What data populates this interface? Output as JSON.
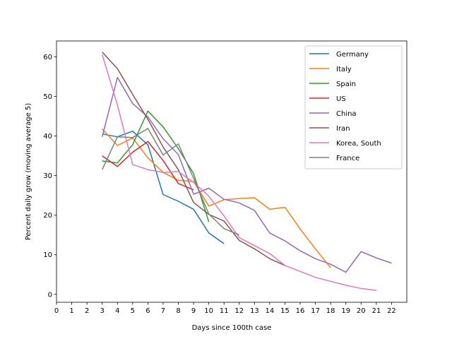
{
  "chart_data": {
    "type": "line",
    "title": "",
    "xlabel": "Days since 100th case",
    "ylabel": "Percent daily grow (moving average 5)",
    "xlim": [
      0,
      23
    ],
    "ylim": [
      -2,
      64
    ],
    "xticks": [
      0,
      1,
      2,
      3,
      4,
      5,
      6,
      7,
      8,
      9,
      10,
      11,
      12,
      13,
      14,
      15,
      16,
      17,
      18,
      19,
      20,
      21,
      22
    ],
    "yticks": [
      0,
      10,
      20,
      30,
      40,
      50,
      60
    ],
    "grid": false,
    "legend_position": "top-right",
    "series": [
      {
        "name": "Germany",
        "color": "#1f77b4",
        "x": [
          3,
          4,
          5,
          6,
          7,
          8,
          9,
          10,
          11
        ],
        "y": [
          40.5,
          39.8,
          41.2,
          37.8,
          25.2,
          23.5,
          21.5,
          15.5,
          12.8
        ]
      },
      {
        "name": "Italy",
        "color": "#ff7f0e",
        "x": [
          3,
          4,
          5,
          6,
          7,
          8,
          9,
          10,
          11,
          12,
          13,
          14,
          15,
          16,
          17,
          18
        ],
        "y": [
          41.8,
          37.6,
          39.5,
          34.5,
          30.8,
          28.8,
          28.5,
          22.3,
          23.9,
          24.2,
          24.4,
          21.5,
          22.0,
          16.5,
          11.5,
          6.7
        ]
      },
      {
        "name": "Spain",
        "color": "#2ca02c",
        "x": [
          3,
          4,
          5,
          6,
          7,
          8,
          9,
          10
        ],
        "y": [
          33.7,
          33.2,
          37.8,
          46.3,
          42.3,
          36.8,
          30.5,
          18.3
        ]
      },
      {
        "name": "US",
        "color": "#d62728",
        "x": [
          3,
          4,
          5,
          6,
          7,
          8,
          9
        ],
        "y": [
          35.0,
          32.3,
          35.9,
          38.6,
          33.8,
          28.0,
          26.4
        ]
      },
      {
        "name": "China",
        "color": "#9467bd",
        "x": [
          3,
          4,
          5,
          6,
          7,
          8,
          9,
          10,
          11,
          12,
          13,
          14,
          15,
          16,
          17,
          18,
          19,
          20,
          21,
          22
        ],
        "y": [
          39.8,
          54.8,
          48.2,
          44.8,
          39.3,
          35.3,
          25.3,
          26.8,
          24.0,
          23.1,
          21.2,
          15.5,
          13.5,
          11.0,
          9.0,
          7.6,
          5.6,
          10.8,
          9.2,
          7.9
        ]
      },
      {
        "name": "Iran",
        "color": "#8c564b",
        "x": [
          3,
          4,
          5,
          6,
          7,
          8,
          9,
          10,
          11,
          12,
          13,
          14,
          15
        ],
        "y": [
          61.2,
          57.0,
          50.5,
          44.2,
          37.2,
          31.5,
          23.2,
          20.2,
          18.5,
          13.6,
          11.5,
          9.0,
          7.3
        ]
      },
      {
        "name": "Korea, South",
        "color": "#e377c2",
        "x": [
          3,
          4,
          5,
          6,
          7,
          8,
          9,
          10,
          11,
          12,
          13,
          14,
          15,
          16,
          17,
          18,
          19,
          20,
          21
        ],
        "y": [
          60.6,
          47.8,
          32.8,
          31.5,
          30.8,
          31.0,
          28.3,
          24.8,
          19.8,
          14.3,
          12.3,
          10.3,
          7.3,
          5.8,
          4.3,
          3.3,
          2.3,
          1.5,
          1.0
        ]
      },
      {
        "name": "France",
        "color": "#7f7f7f",
        "x": [
          3,
          4,
          5,
          6,
          7,
          8,
          9,
          10,
          11,
          12
        ],
        "y": [
          31.5,
          39.8,
          39.6,
          41.9,
          35.2,
          38.0,
          29.3,
          20.3,
          16.6,
          15.0
        ]
      }
    ]
  }
}
